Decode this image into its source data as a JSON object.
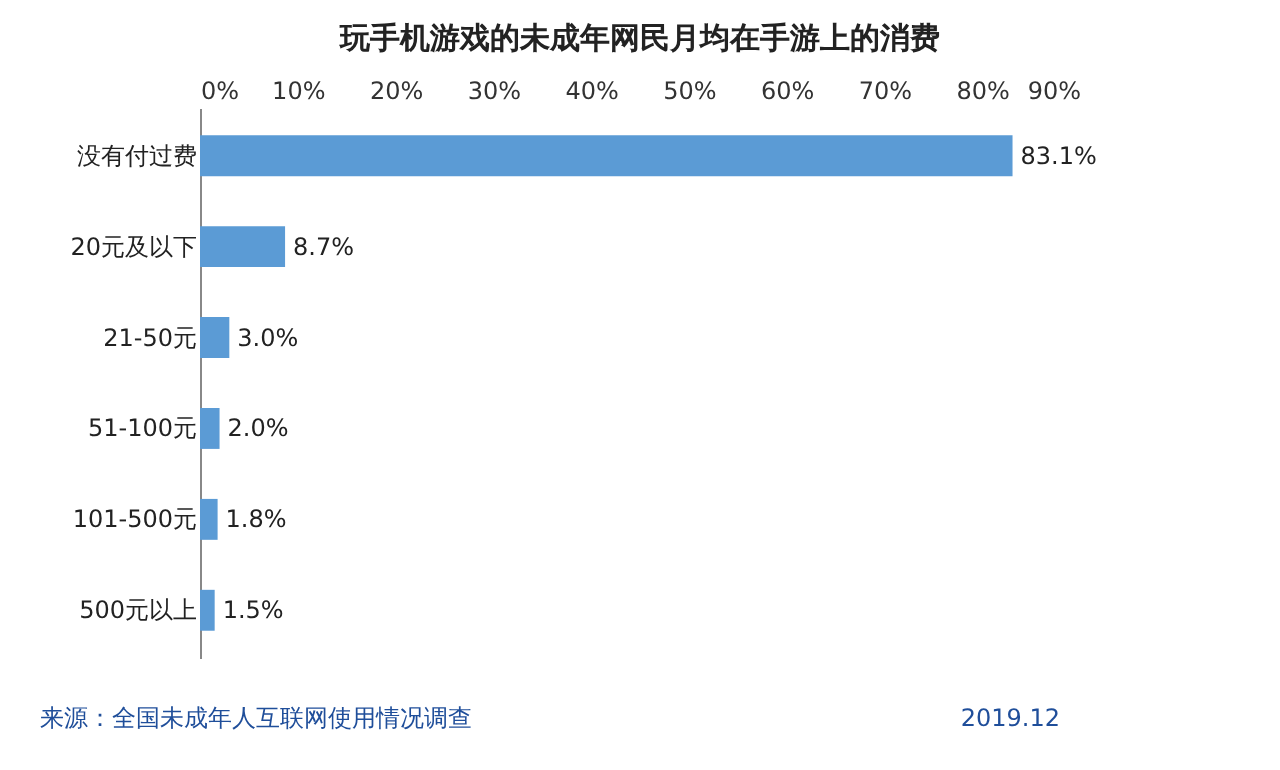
{
  "chart_data": {
    "type": "bar",
    "orientation": "horizontal",
    "title": "玩手机游戏的未成年网民月均在手游上的消费",
    "categories": [
      "没有付过费",
      "20元及以下",
      "21-50元",
      "51-100元",
      "101-500元",
      "500元以上"
    ],
    "values": [
      83.1,
      8.7,
      3.0,
      2.0,
      1.8,
      1.5
    ],
    "value_labels": [
      "83.1%",
      "8.7%",
      "3.0%",
      "2.0%",
      "1.8%",
      "1.5%"
    ],
    "color": "#5b9bd5",
    "xlim": [
      0,
      90
    ],
    "xticks": [
      {
        "value": 0,
        "label": "0%"
      },
      {
        "value": 10,
        "label": "10%"
      },
      {
        "value": 20,
        "label": "20%"
      },
      {
        "value": 30,
        "label": "30%"
      },
      {
        "value": 40,
        "label": "40%"
      },
      {
        "value": 50,
        "label": "50%"
      },
      {
        "value": 60,
        "label": "60%"
      },
      {
        "value": 70,
        "label": "70%"
      },
      {
        "value": 80,
        "label": "80%"
      },
      {
        "value": 90,
        "label": "90%"
      }
    ],
    "grid": false,
    "annotations": [
      "来源：全国未成年人互联网使用情况调查",
      "2019.12"
    ]
  }
}
